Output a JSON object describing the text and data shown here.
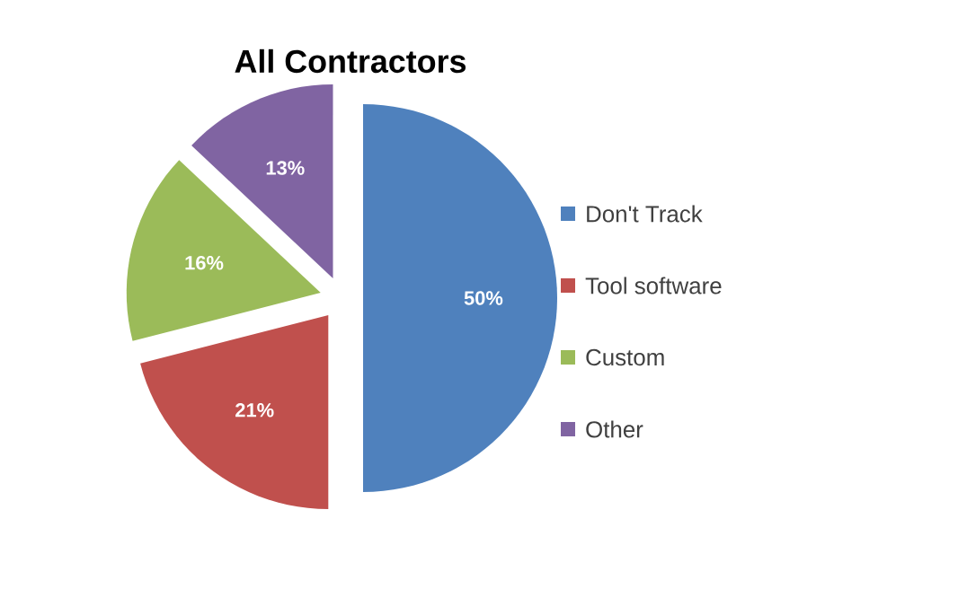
{
  "chart_data": {
    "type": "pie",
    "title": "All Contractors",
    "categories": [
      "Don't Track",
      "Tool software",
      "Custom",
      "Other"
    ],
    "values": [
      50,
      21,
      16,
      13
    ],
    "colors": [
      "#4f81bd",
      "#c0504d",
      "#9bbb59",
      "#8064a2"
    ],
    "value_labels": [
      "50%",
      "21%",
      "16%",
      "13%"
    ],
    "legend": "right"
  }
}
